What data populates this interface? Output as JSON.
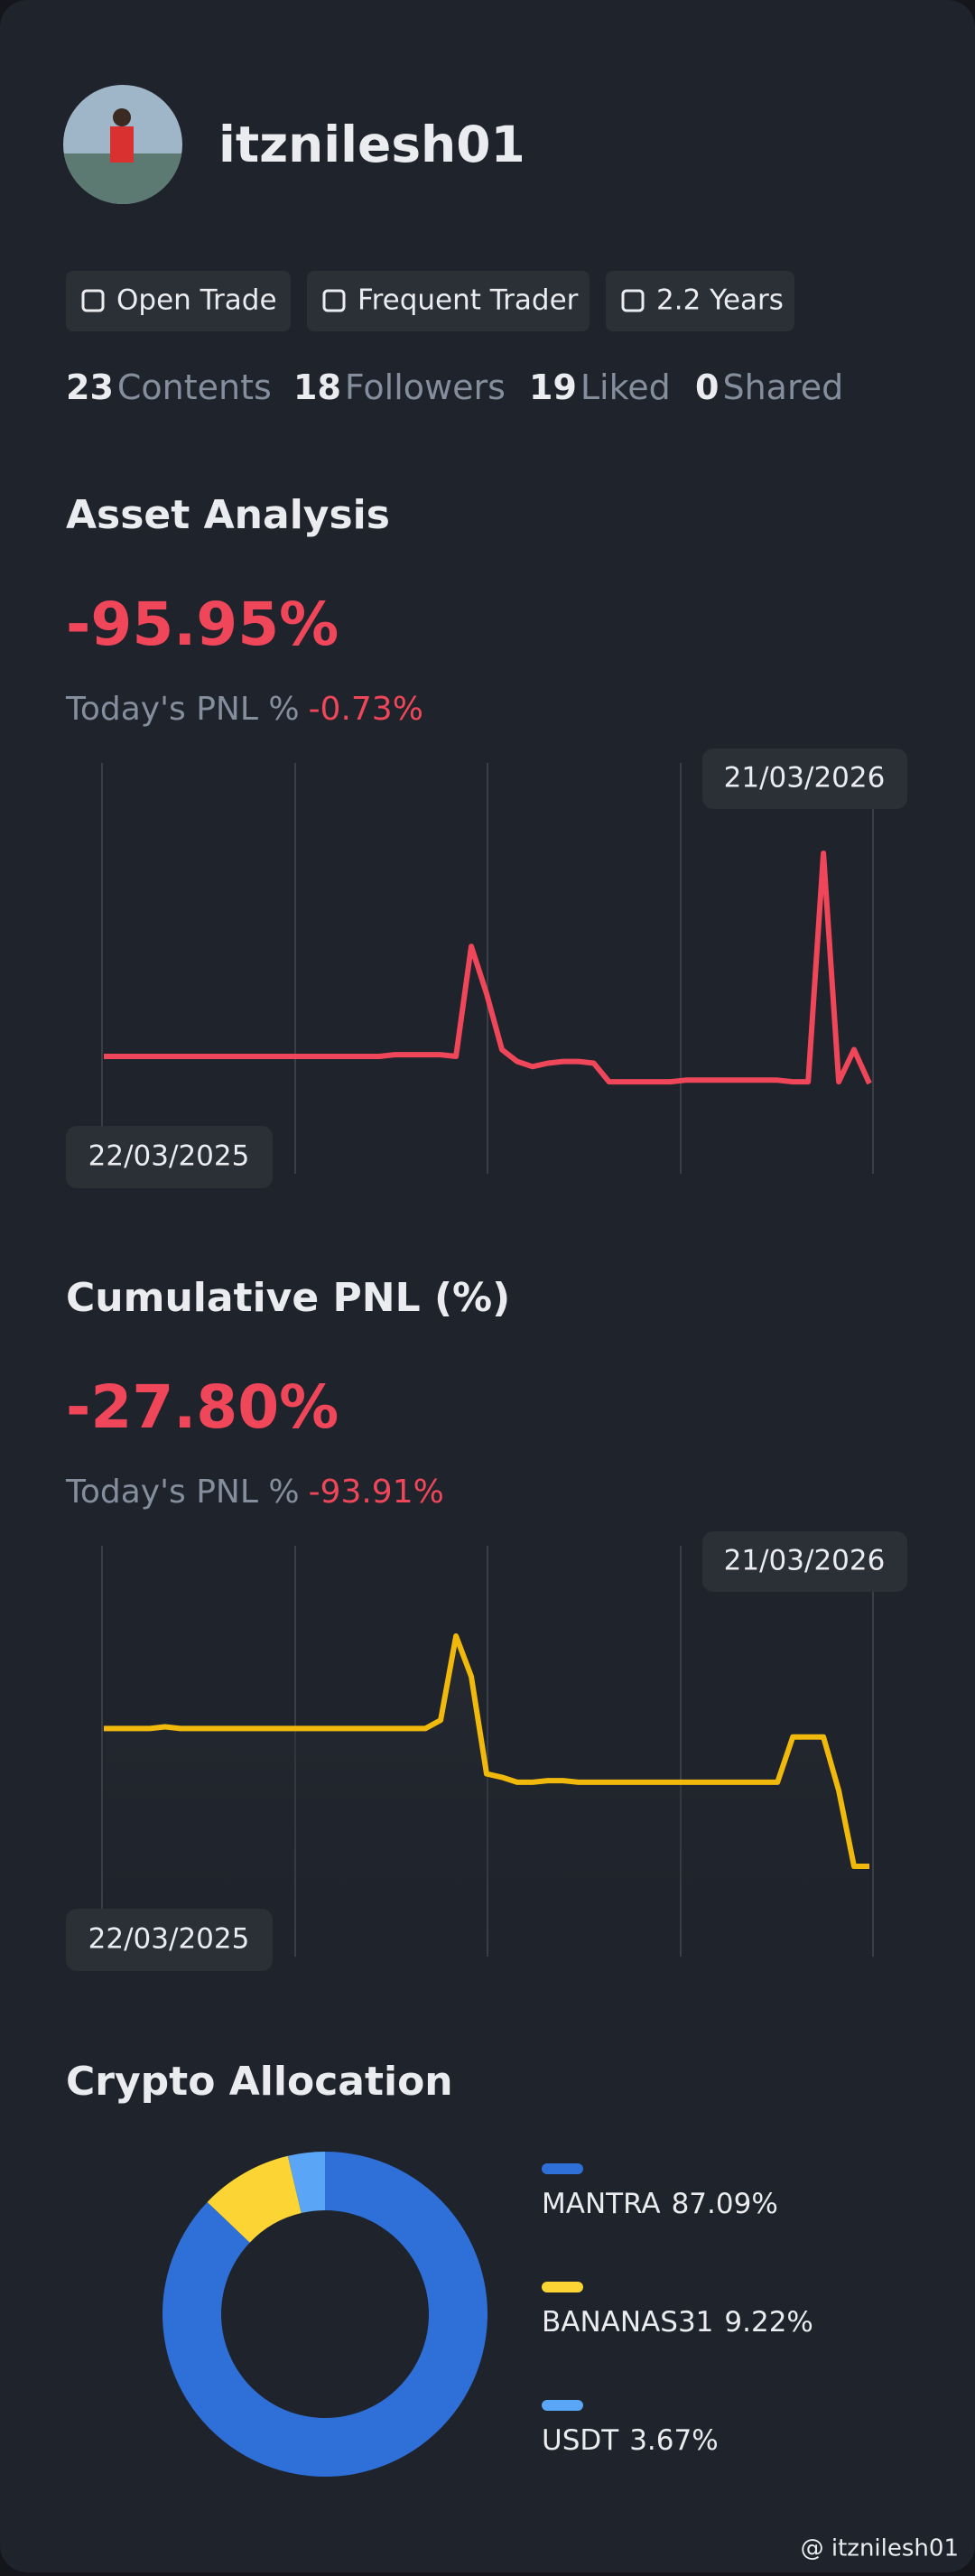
{
  "profile": {
    "username": "itznilesh01",
    "badges": [
      "Open Trade",
      "Frequent Trader",
      "2.2 Years"
    ],
    "stats": [
      {
        "value": 23,
        "label": "Contents"
      },
      {
        "value": 18,
        "label": "Followers"
      },
      {
        "value": 19,
        "label": "Liked"
      },
      {
        "value": 0,
        "label": "Shared"
      }
    ]
  },
  "asset_analysis": {
    "title": "Asset Analysis",
    "value": "-95.95%",
    "today_label": "Today's PNL %",
    "today_value": "-0.73%",
    "chart": {
      "type": "line",
      "color": "#f0465a",
      "start_label": "22/03/2025",
      "end_label": "21/03/2026",
      "values": [
        58,
        58,
        58,
        58,
        58,
        58,
        58,
        58,
        58,
        58,
        58,
        58,
        58,
        58,
        58,
        58,
        58,
        58,
        58,
        59,
        59,
        59,
        59,
        58,
        123,
        95,
        62,
        55,
        52,
        54,
        55,
        55,
        54,
        43,
        43,
        43,
        43,
        43,
        44,
        44,
        44,
        44,
        44,
        44,
        44,
        43,
        43,
        178,
        43,
        62,
        42
      ]
    }
  },
  "cumulative_pnl": {
    "title": "Cumulative PNL (%)",
    "value": "-27.80%",
    "today_label": "Today's PNL %",
    "today_value": "-93.91%",
    "chart": {
      "type": "area",
      "color": "#f0b90b",
      "start_label": "22/03/2025",
      "end_label": "21/03/2026",
      "values": [
        147,
        147,
        147,
        147,
        148,
        147,
        147,
        147,
        147,
        147,
        147,
        147,
        147,
        147,
        147,
        147,
        147,
        147,
        147,
        147,
        147,
        147,
        152,
        202,
        178,
        120,
        118,
        115,
        115,
        116,
        116,
        115,
        115,
        115,
        115,
        115,
        115,
        115,
        115,
        115,
        115,
        115,
        115,
        115,
        115,
        142,
        142,
        142,
        110,
        65,
        65
      ]
    }
  },
  "crypto_allocation": {
    "title": "Crypto Allocation",
    "chart": {
      "type": "pie",
      "categories": [
        "MANTRA",
        "BANANAS31",
        "USDT"
      ],
      "values": [
        87.09,
        9.22,
        3.67
      ],
      "value_labels": [
        "87.09%",
        "9.22%",
        "3.67%"
      ],
      "colors": [
        "#2f6fd8",
        "#fcd535",
        "#5aa5f5"
      ]
    }
  },
  "watermark": "@ itznilesh01"
}
